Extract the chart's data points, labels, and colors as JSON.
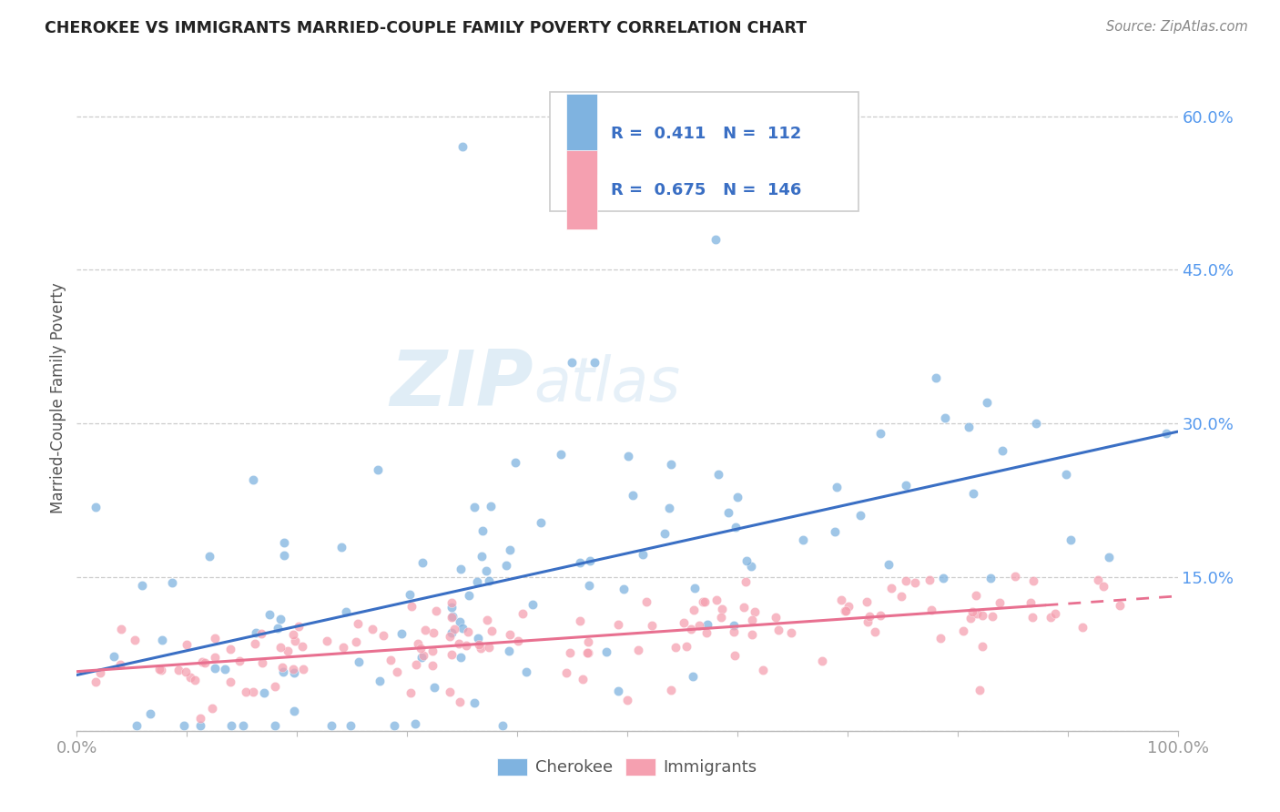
{
  "title": "CHEROKEE VS IMMIGRANTS MARRIED-COUPLE FAMILY POVERTY CORRELATION CHART",
  "source": "Source: ZipAtlas.com",
  "ylabel": "Married-Couple Family Poverty",
  "xlim": [
    0,
    1
  ],
  "ylim": [
    0,
    0.65
  ],
  "ytick_positions": [
    0.0,
    0.15,
    0.3,
    0.45,
    0.6
  ],
  "cherokee_color": "#7fb3e0",
  "immigrants_color": "#f5a0b0",
  "cherokee_line_color": "#3a6fc4",
  "immigrants_line_color": "#e87090",
  "cherokee_R": 0.411,
  "cherokee_N": 112,
  "immigrants_R": 0.675,
  "immigrants_N": 146,
  "watermark_zip": "ZIP",
  "watermark_atlas": "atlas",
  "background_color": "#ffffff",
  "grid_color": "#cccccc",
  "legend_text_color": "#3a6fc4",
  "ytick_color": "#5599ee",
  "xtick_color": "#999999"
}
